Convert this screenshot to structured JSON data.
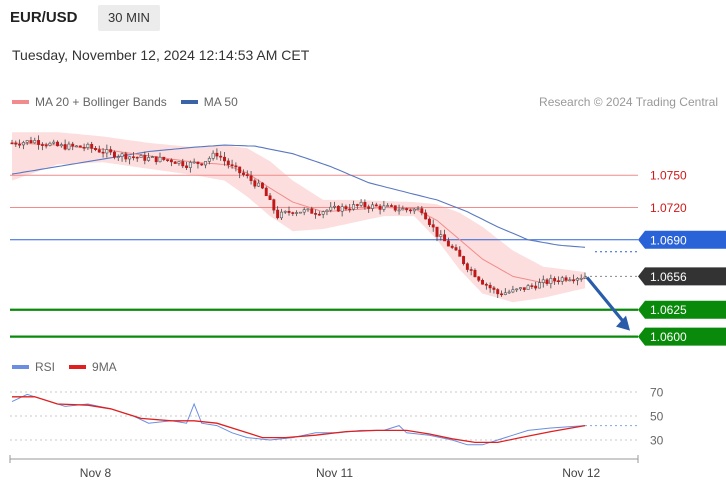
{
  "header": {
    "symbol": "EUR/USD",
    "timeframe": "30 MIN",
    "datetime": "Tuesday, November 12, 2024 12:14:53 AM CET",
    "copyright": "Research © 2024 Trading Central"
  },
  "legend": {
    "price": [
      {
        "label": "MA 20 + Bollinger Bands",
        "color": "#f28b8b"
      },
      {
        "label": "MA 50",
        "color": "#3b63a8"
      }
    ],
    "rsi": [
      {
        "label": "RSI",
        "color": "#6a8ee0"
      },
      {
        "label": "9MA",
        "color": "#e02020"
      }
    ]
  },
  "colors": {
    "up": "#e8e8e8",
    "down": "#c01818",
    "bollinger_fill": "#fbd3d3",
    "ma20": "#f28b8b",
    "ma50": "#5a78c0",
    "resistance": "#f28b8b",
    "pivot": "#2a62d8",
    "support": "#0a8a0a",
    "current": "#333333",
    "arrow": "#2a5caa"
  },
  "chart_data": [
    {
      "type": "candlestick",
      "title": "",
      "ylim": [
        1.0595,
        1.0792
      ],
      "x_ticks": [
        {
          "label": "Nov 8",
          "index": 22
        },
        {
          "label": "Nov 11",
          "index": 85
        },
        {
          "label": "Nov 12",
          "index": 150
        }
      ],
      "num_bars": 152,
      "levels": [
        {
          "value": 1.075,
          "label": "1.0750",
          "kind": "resistance"
        },
        {
          "value": 1.072,
          "label": "1.0720",
          "kind": "resistance"
        },
        {
          "value": 1.069,
          "label": "1.0690",
          "kind": "pivot"
        },
        {
          "value": 1.0656,
          "label": "1.0656",
          "kind": "current"
        },
        {
          "value": 1.0625,
          "label": "1.0625",
          "kind": "support"
        },
        {
          "value": 1.06,
          "label": "1.0600",
          "kind": "support"
        }
      ],
      "price_path": [
        [
          0,
          1.078
        ],
        [
          6,
          1.0782
        ],
        [
          12,
          1.0777
        ],
        [
          20,
          1.0776
        ],
        [
          26,
          1.077
        ],
        [
          34,
          1.0766
        ],
        [
          42,
          1.0764
        ],
        [
          46,
          1.076
        ],
        [
          50,
          1.0762
        ],
        [
          54,
          1.077
        ],
        [
          58,
          1.0757
        ],
        [
          62,
          1.0748
        ],
        [
          66,
          1.0737
        ],
        [
          70,
          1.0712
        ],
        [
          74,
          1.0717
        ],
        [
          80,
          1.0716
        ],
        [
          86,
          1.0719
        ],
        [
          92,
          1.0722
        ],
        [
          98,
          1.072
        ],
        [
          104,
          1.0718
        ],
        [
          108,
          1.0718
        ],
        [
          112,
          1.0695
        ],
        [
          116,
          1.0682
        ],
        [
          120,
          1.0665
        ],
        [
          124,
          1.0651
        ],
        [
          128,
          1.064
        ],
        [
          132,
          1.0642
        ],
        [
          136,
          1.0646
        ],
        [
          140,
          1.065
        ],
        [
          146,
          1.0655
        ],
        [
          151,
          1.0656
        ]
      ],
      "ma20_path": [
        [
          0,
          1.078
        ],
        [
          12,
          1.0778
        ],
        [
          24,
          1.0774
        ],
        [
          36,
          1.0768
        ],
        [
          48,
          1.0762
        ],
        [
          56,
          1.076
        ],
        [
          62,
          1.0752
        ],
        [
          68,
          1.0738
        ],
        [
          74,
          1.0725
        ],
        [
          82,
          1.0716
        ],
        [
          90,
          1.0718
        ],
        [
          98,
          1.072
        ],
        [
          106,
          1.0719
        ],
        [
          112,
          1.0708
        ],
        [
          118,
          1.069
        ],
        [
          124,
          1.0672
        ],
        [
          132,
          1.0656
        ],
        [
          140,
          1.065
        ],
        [
          151,
          1.0654
        ]
      ],
      "bb_upper": [
        [
          0,
          1.079
        ],
        [
          12,
          1.079
        ],
        [
          24,
          1.0786
        ],
        [
          36,
          1.078
        ],
        [
          48,
          1.0776
        ],
        [
          56,
          1.0778
        ],
        [
          62,
          1.0775
        ],
        [
          68,
          1.0763
        ],
        [
          74,
          1.0745
        ],
        [
          82,
          1.0727
        ],
        [
          90,
          1.0727
        ],
        [
          98,
          1.0726
        ],
        [
          106,
          1.0725
        ],
        [
          112,
          1.0723
        ],
        [
          118,
          1.0715
        ],
        [
          124,
          1.0702
        ],
        [
          132,
          1.068
        ],
        [
          140,
          1.0665
        ],
        [
          151,
          1.066
        ]
      ],
      "bb_lower": [
        [
          0,
          1.0745
        ],
        [
          12,
          1.076
        ],
        [
          24,
          1.0762
        ],
        [
          36,
          1.0756
        ],
        [
          48,
          1.075
        ],
        [
          56,
          1.0745
        ],
        [
          62,
          1.073
        ],
        [
          68,
          1.0712
        ],
        [
          74,
          1.0698
        ],
        [
          82,
          1.07
        ],
        [
          90,
          1.0706
        ],
        [
          98,
          1.0712
        ],
        [
          106,
          1.0712
        ],
        [
          112,
          1.069
        ],
        [
          118,
          1.0662
        ],
        [
          124,
          1.064
        ],
        [
          132,
          1.0632
        ],
        [
          140,
          1.0636
        ],
        [
          151,
          1.0645
        ]
      ],
      "ma50_path": [
        [
          0,
          1.0751
        ],
        [
          12,
          1.0758
        ],
        [
          24,
          1.0765
        ],
        [
          36,
          1.0772
        ],
        [
          48,
          1.0776
        ],
        [
          56,
          1.0778
        ],
        [
          64,
          1.0777
        ],
        [
          74,
          1.077
        ],
        [
          84,
          1.0758
        ],
        [
          94,
          1.0743
        ],
        [
          104,
          1.0734
        ],
        [
          112,
          1.0727
        ],
        [
          120,
          1.0716
        ],
        [
          128,
          1.0702
        ],
        [
          136,
          1.069
        ],
        [
          144,
          1.0685
        ],
        [
          151,
          1.0683
        ]
      ]
    },
    {
      "type": "line",
      "title": "",
      "ylim": [
        20,
        80
      ],
      "y_ticks": [
        30,
        50,
        70
      ],
      "series": [
        {
          "name": "RSI",
          "values": [
            [
              0,
              62
            ],
            [
              4,
              68
            ],
            [
              8,
              64
            ],
            [
              14,
              58
            ],
            [
              20,
              60
            ],
            [
              26,
              56
            ],
            [
              32,
              50
            ],
            [
              36,
              44
            ],
            [
              42,
              46
            ],
            [
              46,
              44
            ],
            [
              48,
              60
            ],
            [
              50,
              44
            ],
            [
              54,
              42
            ],
            [
              58,
              36
            ],
            [
              62,
              32
            ],
            [
              68,
              30
            ],
            [
              74,
              32
            ],
            [
              80,
              36
            ],
            [
              86,
              36
            ],
            [
              92,
              38
            ],
            [
              98,
              38
            ],
            [
              102,
              42
            ],
            [
              104,
              36
            ],
            [
              110,
              34
            ],
            [
              116,
              30
            ],
            [
              120,
              26
            ],
            [
              124,
              26
            ],
            [
              128,
              30
            ],
            [
              132,
              34
            ],
            [
              136,
              38
            ],
            [
              142,
              40
            ],
            [
              151,
              42
            ]
          ]
        },
        {
          "name": "9MA",
          "values": [
            [
              0,
              66
            ],
            [
              6,
              66
            ],
            [
              12,
              60
            ],
            [
              20,
              59
            ],
            [
              26,
              56
            ],
            [
              34,
              48
            ],
            [
              42,
              46
            ],
            [
              48,
              46
            ],
            [
              54,
              44
            ],
            [
              60,
              38
            ],
            [
              66,
              32
            ],
            [
              72,
              32
            ],
            [
              80,
              34
            ],
            [
              88,
              37
            ],
            [
              96,
              38
            ],
            [
              104,
              38
            ],
            [
              110,
              35
            ],
            [
              116,
              31
            ],
            [
              122,
              28
            ],
            [
              128,
              28
            ],
            [
              134,
              32
            ],
            [
              142,
              37
            ],
            [
              151,
              42
            ]
          ]
        }
      ]
    }
  ]
}
